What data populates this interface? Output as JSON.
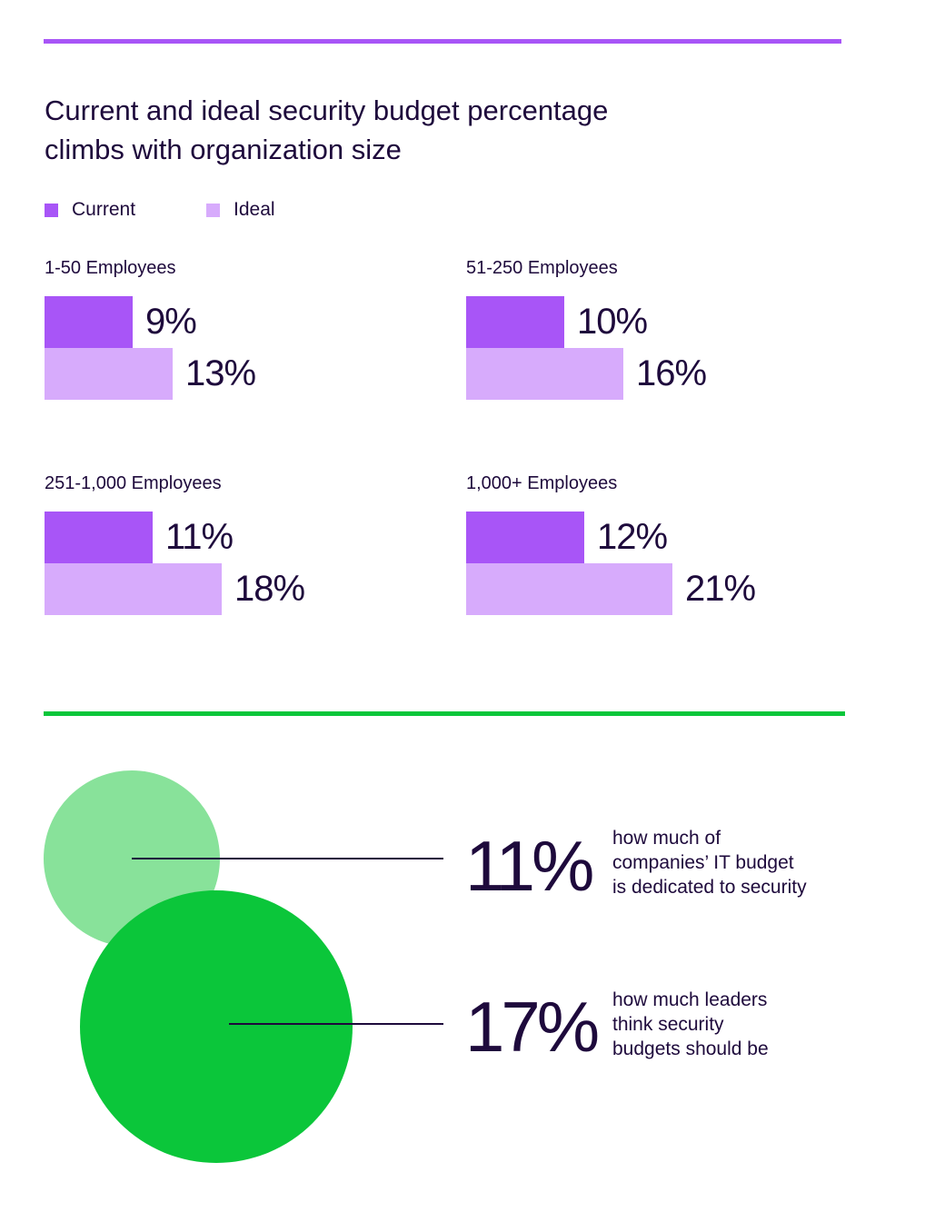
{
  "title_lines": [
    "Current and ideal security budget percentage",
    "climbs with organization size"
  ],
  "colors": {
    "current": "#a855f7",
    "ideal": "#d7abfc",
    "circle_small": "#88e29a",
    "circle_large": "#0bc63a",
    "text": "#1e0a3c",
    "rule_top": "#a855f7",
    "rule_mid": "#0bc63a"
  },
  "chart_data": {
    "type": "bar",
    "orientation": "horizontal",
    "title": "Current and ideal security budget percentage climbs with organization size",
    "legend": {
      "placement": "top-left",
      "entries": [
        {
          "name": "Current",
          "color": "#a855f7"
        },
        {
          "name": "Ideal",
          "color": "#d7abfc"
        }
      ]
    },
    "categories": [
      "1-50 Employees",
      "51-250 Employees",
      "251-1,000 Employees",
      "1,000+ Employees"
    ],
    "series": [
      {
        "name": "Current",
        "values": [
          9,
          10,
          11,
          12
        ],
        "labels": [
          "9%",
          "10%",
          "11%",
          "12%"
        ]
      },
      {
        "name": "Ideal",
        "values": [
          13,
          16,
          18,
          21
        ],
        "labels": [
          "13%",
          "16%",
          "18%",
          "21%"
        ]
      }
    ],
    "unit": "%",
    "grid": false
  },
  "stats": [
    {
      "value": 11,
      "value_label": "11%",
      "description_lines": [
        "how much of",
        "companies’ IT budget",
        "is dedicated to security"
      ]
    },
    {
      "value": 17,
      "value_label": "17%",
      "description_lines": [
        "how much leaders",
        "think security",
        "budgets should be"
      ]
    }
  ]
}
